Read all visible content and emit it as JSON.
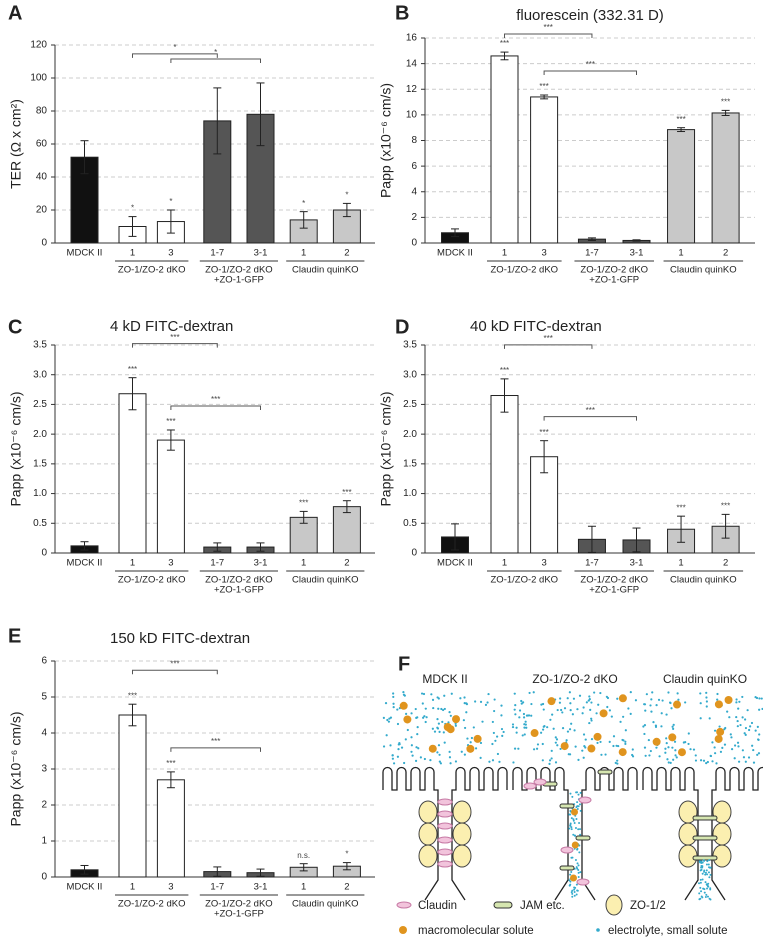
{
  "chart_data": [
    {
      "type": "bar",
      "panel": "A",
      "y_label": "TER (Ω x cm²)",
      "categories": [
        "MDCK II",
        "1",
        "3",
        "1-7",
        "3-1",
        "1",
        "2"
      ],
      "groups": [
        [
          "ZO-1/ZO-2 dKO"
        ],
        [
          "ZO-1/ZO-2 dKO",
          "+ZO-1-GFP"
        ],
        [
          "Claudin quinKO"
        ]
      ],
      "values": [
        52,
        10,
        13,
        74,
        78,
        14,
        20
      ],
      "errors": [
        10,
        6,
        7,
        20,
        19,
        5,
        4
      ],
      "colors": [
        "#111111",
        "#ffffff",
        "#ffffff",
        "#555555",
        "#555555",
        "#c8c8c8",
        "#c8c8c8"
      ],
      "annotations": [
        null,
        "*",
        "*",
        null,
        null,
        "*",
        "*"
      ],
      "brackets": [
        "*",
        "*"
      ],
      "ylim": [
        0,
        120
      ],
      "yticks": [
        0,
        20,
        40,
        60,
        80,
        100,
        120
      ],
      "grid": true
    },
    {
      "type": "bar",
      "panel": "B",
      "title": "fluorescein (332.31 D)",
      "y_label": "Papp (x10⁻⁶ cm/s)",
      "categories": [
        "MDCK II",
        "1",
        "3",
        "1-7",
        "3-1",
        "1",
        "2"
      ],
      "groups": [
        [
          "ZO-1/ZO-2 dKO"
        ],
        [
          "ZO-1/ZO-2 dKO",
          "+ZO-1-GFP"
        ],
        [
          "Claudin quinKO"
        ]
      ],
      "values": [
        0.8,
        14.6,
        11.4,
        0.3,
        0.2,
        8.85,
        10.15
      ],
      "errors": [
        0.3,
        0.3,
        0.15,
        0.1,
        0.05,
        0.15,
        0.2
      ],
      "colors": [
        "#111111",
        "#ffffff",
        "#ffffff",
        "#555555",
        "#555555",
        "#c8c8c8",
        "#c8c8c8"
      ],
      "annotations": [
        null,
        "***",
        "***",
        null,
        null,
        "***",
        "***"
      ],
      "brackets": [
        "***",
        "***"
      ],
      "ylim": [
        0,
        16
      ],
      "yticks": [
        0,
        2,
        4,
        6,
        8,
        10,
        12,
        14,
        16
      ],
      "grid": true
    },
    {
      "type": "bar",
      "panel": "C",
      "title": "4 kD FITC-dextran",
      "y_label": "Papp (x10⁻⁶ cm/s)",
      "categories": [
        "MDCK II",
        "1",
        "3",
        "1-7",
        "3-1",
        "1",
        "2"
      ],
      "groups": [
        [
          "ZO-1/ZO-2 dKO"
        ],
        [
          "ZO-1/ZO-2 dKO",
          "+ZO-1-GFP"
        ],
        [
          "Claudin quinKO"
        ]
      ],
      "values": [
        0.12,
        2.68,
        1.9,
        0.1,
        0.1,
        0.6,
        0.78
      ],
      "errors": [
        0.07,
        0.27,
        0.17,
        0.07,
        0.07,
        0.1,
        0.1
      ],
      "colors": [
        "#111111",
        "#ffffff",
        "#ffffff",
        "#555555",
        "#555555",
        "#c8c8c8",
        "#c8c8c8"
      ],
      "annotations": [
        null,
        "***",
        "***",
        null,
        null,
        "***",
        "***"
      ],
      "brackets": [
        "***",
        "***"
      ],
      "ylim": [
        0,
        3.5
      ],
      "yticks": [
        0,
        0.5,
        {
          "value": 1,
          "label": "1.0"
        },
        1.5,
        {
          "value": 2,
          "label": "2.0"
        },
        2.5,
        {
          "value": 3,
          "label": "3.0"
        },
        3.5
      ],
      "grid": true
    },
    {
      "type": "bar",
      "panel": "D",
      "title": "40 kD FITC-dextran",
      "y_label": "Papp (x10⁻⁶ cm/s)",
      "categories": [
        "MDCK II",
        "1",
        "3",
        "1-7",
        "3-1",
        "1",
        "2"
      ],
      "groups": [
        [
          "ZO-1/ZO-2 dKO"
        ],
        [
          "ZO-1/ZO-2 dKO",
          "+ZO-1-GFP"
        ],
        [
          "Claudin quinKO"
        ]
      ],
      "values": [
        0.27,
        2.65,
        1.62,
        0.23,
        0.22,
        0.4,
        0.45
      ],
      "errors": [
        0.22,
        0.28,
        0.27,
        0.22,
        0.2,
        0.22,
        0.2
      ],
      "colors": [
        "#111111",
        "#ffffff",
        "#ffffff",
        "#555555",
        "#555555",
        "#c8c8c8",
        "#c8c8c8"
      ],
      "annotations": [
        null,
        "***",
        "***",
        null,
        null,
        "***",
        "***"
      ],
      "brackets": [
        "***",
        "***"
      ],
      "ylim": [
        0,
        3.5
      ],
      "yticks": [
        0,
        0.5,
        {
          "value": 1,
          "label": "1.0"
        },
        1.5,
        {
          "value": 2,
          "label": "2.0"
        },
        2.5,
        {
          "value": 3,
          "label": "3.0"
        },
        3.5
      ],
      "grid": true
    },
    {
      "type": "bar",
      "panel": "E",
      "title": "150 kD FITC-dextran",
      "y_label": "Papp (x10⁻⁶ cm/s)",
      "categories": [
        "MDCK II",
        "1",
        "3",
        "1-7",
        "3-1",
        "1",
        "2"
      ],
      "groups": [
        [
          "ZO-1/ZO-2 dKO"
        ],
        [
          "ZO-1/ZO-2 dKO",
          "+ZO-1-GFP"
        ],
        [
          "Claudin quinKO"
        ]
      ],
      "values": [
        0.2,
        4.5,
        2.7,
        0.15,
        0.12,
        0.27,
        0.3
      ],
      "errors": [
        0.12,
        0.3,
        0.22,
        0.13,
        0.1,
        0.1,
        0.1
      ],
      "colors": [
        "#111111",
        "#ffffff",
        "#ffffff",
        "#555555",
        "#555555",
        "#c8c8c8",
        "#c8c8c8"
      ],
      "annotations": [
        null,
        "***",
        "***",
        null,
        null,
        "n.s.",
        "*"
      ],
      "brackets": [
        "***",
        "***"
      ],
      "ylim": [
        0,
        6
      ],
      "yticks": [
        0,
        1,
        2,
        3,
        4,
        5,
        6
      ],
      "grid": true
    }
  ],
  "diagram": {
    "panel": "F",
    "columns": [
      "MDCK II",
      "ZO-1/ZO-2 dKO",
      "Claudin quinKO"
    ],
    "legend": [
      "Claudin",
      "JAM etc.",
      "ZO-1/2",
      "macromolecular solute",
      "electrolyte, small solute"
    ]
  }
}
